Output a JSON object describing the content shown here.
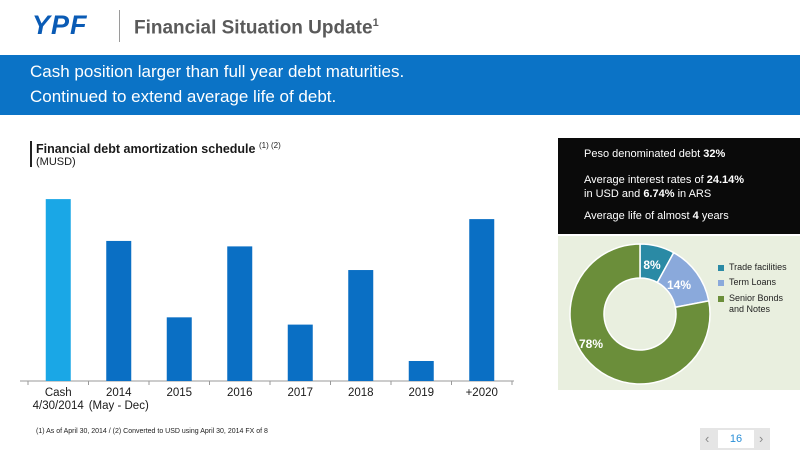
{
  "header": {
    "logo_text": "YPF",
    "title": "Financial Situation Update",
    "title_sup": "1"
  },
  "banner": {
    "line1": "Cash position larger than full year debt maturities.",
    "line2": "Continued to extend average life of debt."
  },
  "colors": {
    "brand_blue": "#0a5bb5",
    "banner_blue": "#0b73c6",
    "bar_blue": "#0a6fc4",
    "cash_cyan": "#1aa7e6",
    "trade": "#2a8aa5",
    "term": "#8aa9db",
    "bonds": "#6b8e3a"
  },
  "chart_data": [
    {
      "type": "bar",
      "title": "Financial debt amortization schedule",
      "title_note": "(1) (2)",
      "unit": "(MUSD)",
      "categories": [
        "Cash\n4/30/2014",
        "2014\n(May - Dec)",
        "2015",
        "2016",
        "2017",
        "2018",
        "2019",
        "+2020"
      ],
      "values": [
        100,
        77,
        35,
        74,
        31,
        61,
        11,
        89
      ],
      "ylim": [
        0,
        105
      ],
      "grid": false
    },
    {
      "type": "pie",
      "slices": [
        {
          "label": "Trade facilities",
          "value": 8,
          "data_label": "8%"
        },
        {
          "label": "Term Loans",
          "value": 14,
          "data_label": "14%"
        },
        {
          "label": "Senior Bonds and Notes",
          "value": 78,
          "data_label": "78%"
        }
      ],
      "legend_position": "right"
    }
  ],
  "sidebar": {
    "peso_text": "Peso denominated debt ",
    "peso_value": "32%",
    "rate_text_1": "Average interest rates  of ",
    "rate_usd": "24.14%",
    "rate_text_2": "in USD and ",
    "rate_ars": "6.74%",
    "rate_text_3": " in ARS",
    "life_text": "Average life of almost ",
    "life_value": "4",
    "life_text_2": " years"
  },
  "footnote": "(1)     As of April 30, 2014    /    (2) Converted to USD using April 30, 2014 FX of 8",
  "pager": {
    "page": "16",
    "prev": "‹",
    "next": "›"
  }
}
